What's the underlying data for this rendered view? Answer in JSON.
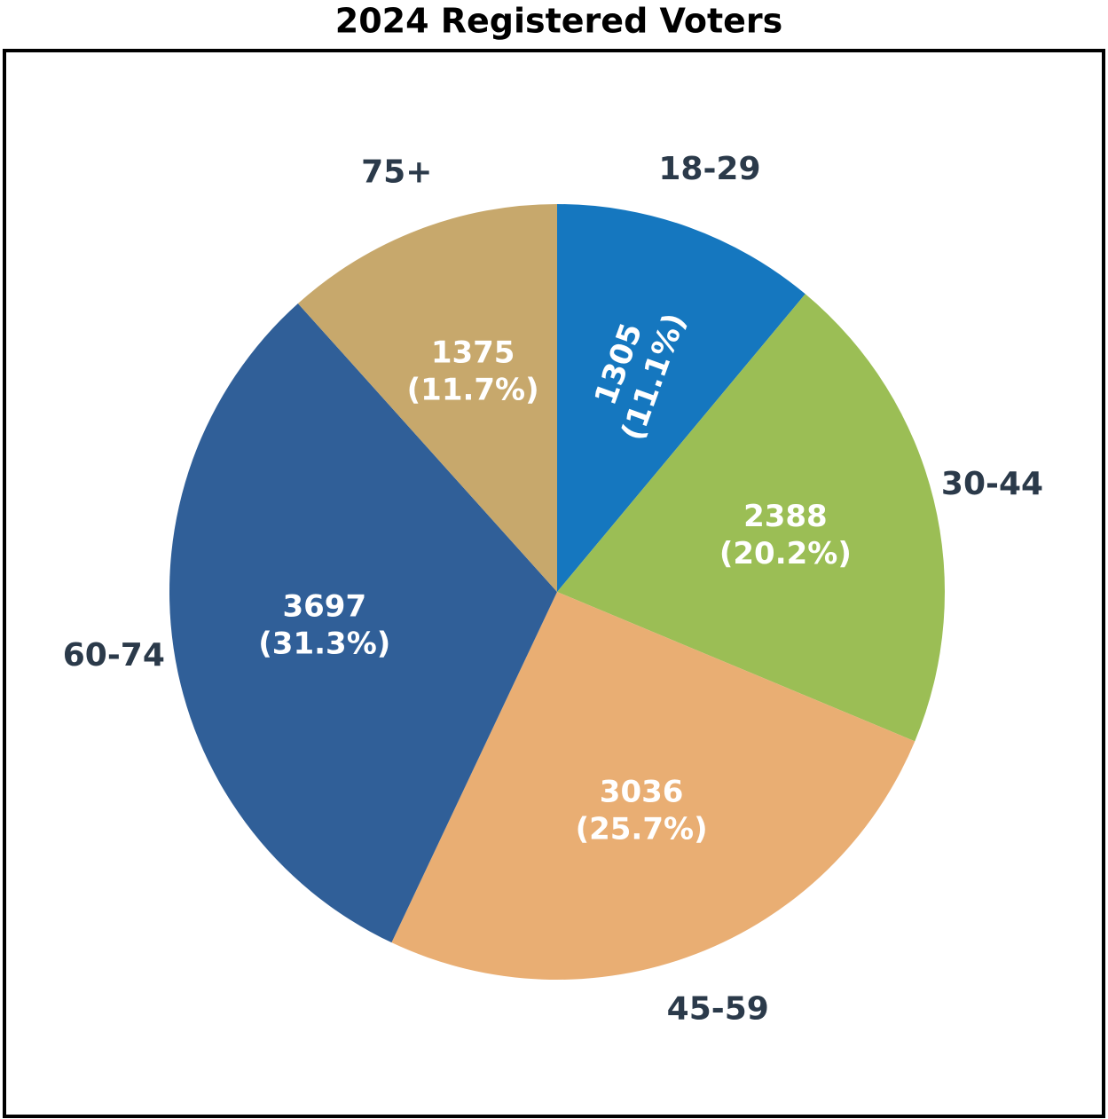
{
  "chart_data": {
    "type": "pie",
    "title": "2024 Registered Voters",
    "categories": [
      "18-29",
      "30-44",
      "45-59",
      "60-74",
      "75+"
    ],
    "values": [
      1305,
      2388,
      3036,
      3697,
      1375
    ],
    "value_labels": [
      "1305 (11.1%)",
      "2388 (20.2%)",
      "3036 (25.7%)",
      "3697 (31.3%)",
      "1375 (11.7%)"
    ],
    "colors": [
      "#1577bf",
      "#9bbe55",
      "#e9ae73",
      "#305f98",
      "#c7a86c"
    ]
  }
}
